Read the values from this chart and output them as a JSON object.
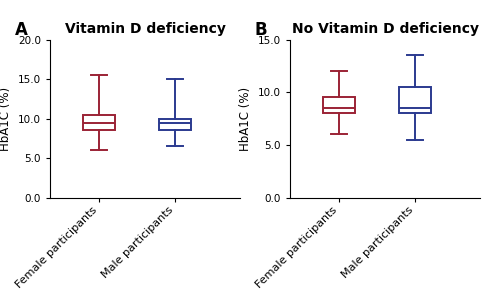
{
  "panel_A": {
    "title": "Vitamin D deficiency",
    "ylabel": "HbA1C (%)",
    "ylim": [
      0.0,
      20.0
    ],
    "yticks": [
      0.0,
      5.0,
      10.0,
      15.0,
      20.0
    ],
    "categories": [
      "Female participants",
      "Male participants"
    ],
    "colors": [
      "#9B2335",
      "#2B3A8F"
    ],
    "boxes": [
      {
        "whislo": 6.0,
        "q1": 8.5,
        "med": 9.5,
        "q3": 10.5,
        "whishi": 15.5
      },
      {
        "whislo": 6.5,
        "q1": 8.5,
        "med": 9.5,
        "q3": 10.0,
        "whishi": 15.0
      }
    ]
  },
  "panel_B": {
    "title": "No Vitamin D deficiency",
    "ylabel": "HbA1C (%)",
    "ylim": [
      0.0,
      15.0
    ],
    "yticks": [
      0.0,
      5.0,
      10.0,
      15.0
    ],
    "categories": [
      "Female participants",
      "Male participants"
    ],
    "colors": [
      "#9B2335",
      "#2B3A8F"
    ],
    "boxes": [
      {
        "whislo": 6.0,
        "q1": 8.0,
        "med": 8.5,
        "q3": 9.5,
        "whishi": 12.0
      },
      {
        "whislo": 5.5,
        "q1": 8.0,
        "med": 8.5,
        "q3": 10.5,
        "whishi": 13.5
      }
    ]
  },
  "label_A": "A",
  "label_B": "B",
  "label_fontsize": 12,
  "title_fontsize": 10,
  "tick_fontsize": 7.5,
  "xlabel_fontsize": 8,
  "ylabel_fontsize": 8.5,
  "box_width": 0.42,
  "linewidth": 1.4,
  "background_color": "#ffffff"
}
